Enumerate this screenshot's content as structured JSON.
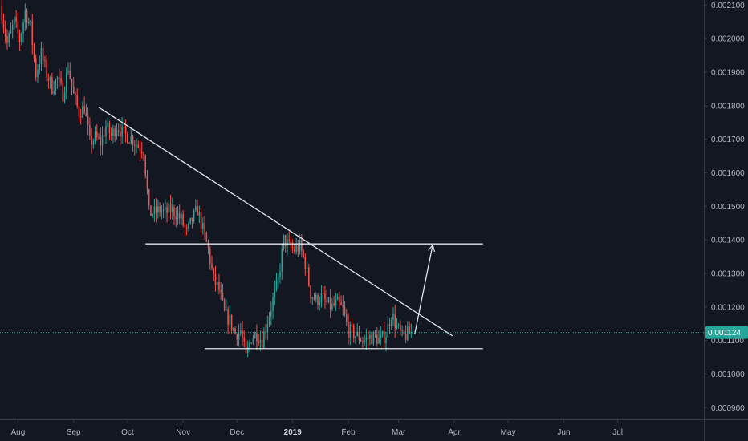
{
  "chart_data": {
    "type": "candlestick",
    "title": "",
    "xlabel": "",
    "ylabel": "",
    "ylim": [
      0.000865,
      0.002115
    ],
    "y_ticks": [
      "0.002100",
      "0.002000",
      "0.001900",
      "0.001800",
      "0.001700",
      "0.001600",
      "0.001500",
      "0.001400",
      "0.001300",
      "0.001200",
      "0.001100",
      "0.001000",
      "0.000900"
    ],
    "x_ticks": [
      {
        "label": "Aug",
        "date": "2018-08-01"
      },
      {
        "label": "Sep",
        "date": "2018-09-01"
      },
      {
        "label": "Oct",
        "date": "2018-10-01"
      },
      {
        "label": "Nov",
        "date": "2018-11-01"
      },
      {
        "label": "Dec",
        "date": "2018-12-01"
      },
      {
        "label": "2019",
        "date": "2019-01-01",
        "bold": true
      },
      {
        "label": "Feb",
        "date": "2019-02-01"
      },
      {
        "label": "Mar",
        "date": "2019-03-01"
      },
      {
        "label": "Apr",
        "date": "2019-04-01"
      },
      {
        "label": "May",
        "date": "2019-05-01"
      },
      {
        "label": "Jun",
        "date": "2019-06-01"
      },
      {
        "label": "Jul",
        "date": "2019-07-01"
      }
    ],
    "xlim": [
      "2018-07-22",
      "2019-08-18"
    ],
    "close_trace": [
      [
        "2018-07-23",
        0.002075
      ],
      [
        "2018-07-26",
        0.001985
      ],
      [
        "2018-07-30",
        0.00205
      ],
      [
        "2018-08-02",
        0.001995
      ],
      [
        "2018-08-05",
        0.00208
      ],
      [
        "2018-08-08",
        0.002035
      ],
      [
        "2018-08-11",
        0.001895
      ],
      [
        "2018-08-14",
        0.001955
      ],
      [
        "2018-08-17",
        0.001895
      ],
      [
        "2018-08-20",
        0.001855
      ],
      [
        "2018-08-23",
        0.00188
      ],
      [
        "2018-08-26",
        0.001835
      ],
      [
        "2018-08-29",
        0.001915
      ],
      [
        "2018-09-01",
        0.00183
      ],
      [
        "2018-09-04",
        0.00178
      ],
      [
        "2018-09-07",
        0.001795
      ],
      [
        "2018-09-10",
        0.00169
      ],
      [
        "2018-09-13",
        0.001705
      ],
      [
        "2018-09-16",
        0.00169
      ],
      [
        "2018-09-19",
        0.00174
      ],
      [
        "2018-09-22",
        0.00171
      ],
      [
        "2018-09-25",
        0.00174
      ],
      [
        "2018-09-28",
        0.00172
      ],
      [
        "2018-10-01",
        0.00171
      ],
      [
        "2018-10-04",
        0.0017
      ],
      [
        "2018-10-07",
        0.00168
      ],
      [
        "2018-10-10",
        0.00167
      ],
      [
        "2018-10-13",
        0.00148
      ],
      [
        "2018-10-16",
        0.00148
      ],
      [
        "2018-10-19",
        0.00149
      ],
      [
        "2018-10-22",
        0.00148
      ],
      [
        "2018-10-25",
        0.00149
      ],
      [
        "2018-10-28",
        0.00148
      ],
      [
        "2018-10-31",
        0.00146
      ],
      [
        "2018-11-03",
        0.00142
      ],
      [
        "2018-11-06",
        0.00146
      ],
      [
        "2018-11-09",
        0.00149
      ],
      [
        "2018-11-12",
        0.00143
      ],
      [
        "2018-11-15",
        0.00137
      ],
      [
        "2018-11-18",
        0.00128
      ],
      [
        "2018-11-21",
        0.00125
      ],
      [
        "2018-11-24",
        0.00118
      ],
      [
        "2018-11-27",
        0.00116
      ],
      [
        "2018-11-30",
        0.00112
      ],
      [
        "2018-12-03",
        0.00113
      ],
      [
        "2018-12-06",
        0.00105
      ],
      [
        "2018-12-09",
        0.00111
      ],
      [
        "2018-12-12",
        0.00112
      ],
      [
        "2018-12-15",
        0.0011
      ],
      [
        "2018-12-18",
        0.00116
      ],
      [
        "2018-12-21",
        0.00122
      ],
      [
        "2018-12-24",
        0.00128
      ],
      [
        "2018-12-27",
        0.0014
      ],
      [
        "2018-12-30",
        0.00138
      ],
      [
        "2019-01-02",
        0.00137
      ],
      [
        "2019-01-05",
        0.00138
      ],
      [
        "2019-01-08",
        0.00133
      ],
      [
        "2019-01-11",
        0.00124
      ],
      [
        "2019-01-14",
        0.00122
      ],
      [
        "2019-01-17",
        0.00123
      ],
      [
        "2019-01-20",
        0.00121
      ],
      [
        "2019-01-23",
        0.0012
      ],
      [
        "2019-01-26",
        0.00121
      ],
      [
        "2019-01-29",
        0.00119
      ],
      [
        "2019-02-01",
        0.00113
      ],
      [
        "2019-02-04",
        0.00112
      ],
      [
        "2019-02-07",
        0.00111
      ],
      [
        "2019-02-10",
        0.0011
      ],
      [
        "2019-02-13",
        0.00111
      ],
      [
        "2019-02-16",
        0.00111
      ],
      [
        "2019-02-19",
        0.0011
      ],
      [
        "2019-02-22",
        0.00112
      ],
      [
        "2019-02-25",
        0.00118
      ],
      [
        "2019-02-28",
        0.00114
      ],
      [
        "2019-03-03",
        0.00111
      ],
      [
        "2019-03-06",
        0.00112
      ],
      [
        "2019-03-08",
        0.001124
      ]
    ],
    "current_price": {
      "label": "0.001124",
      "value": 0.001124
    },
    "annotations": [
      {
        "kind": "trendline",
        "from": [
          "2018-09-15",
          0.001795
        ],
        "to": [
          "2019-03-31",
          0.001114
        ]
      },
      {
        "kind": "resistance",
        "from": [
          "2018-10-11",
          0.001388
        ],
        "to": [
          "2019-04-17",
          0.001388
        ]
      },
      {
        "kind": "support",
        "from": [
          "2018-11-13",
          0.001076
        ],
        "to": [
          "2019-04-17",
          0.001076
        ]
      },
      {
        "kind": "arrow",
        "from": [
          "2019-03-10",
          0.00112
        ],
        "to": [
          "2019-03-20",
          0.001385
        ]
      }
    ],
    "grid": false,
    "legend": "none"
  },
  "colors": {
    "background": "#131722",
    "up": "#26a69a",
    "down": "#ef5350",
    "axis_text": "#b2b5be",
    "axis_line": "#363a45",
    "drawing": "#e0e3eb",
    "price_line": "#26a69a"
  }
}
